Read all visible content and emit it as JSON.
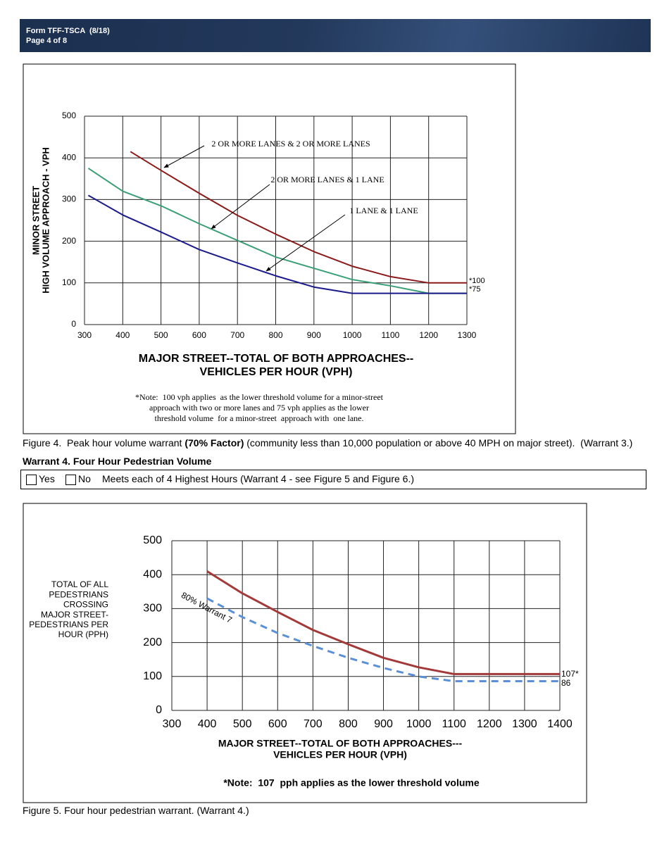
{
  "header": {
    "form": "Form TFF-TSCA  (8/18)",
    "page": "Page 4 of 8"
  },
  "figure4_caption": [
    "Figure 4.  Peak hour volume warrant ",
    "(70% Factor)",
    " (community less than 10,000 population or above 40 MPH on major street).  (Warrant 3.)"
  ],
  "warrant4": {
    "title": "Warrant 4. Four Hour Pedestrian Volume",
    "yes": "Yes",
    "no": "No",
    "text": "Meets each of 4 Highest Hours (Warrant 4 - see Figure 5 and Figure 6.)"
  },
  "figure5_caption": "Figure 5. Four hour pedestrian warrant. (Warrant 4.)",
  "chart_data": [
    {
      "type": "line",
      "xlabel": [
        "MAJOR STREET--TOTAL OF BOTH APPROACHES--",
        "VEHICLES PER HOUR (VPH)"
      ],
      "ylabel": [
        "MINOR STREET",
        "HIGH VOLUME APPROACH - VPH"
      ],
      "note": [
        "*Note:  100 vph applies  as the lower threshold volume for a minor-street",
        "approach with two or more lanes and 75 vph applies as the lower",
        "threshold volume  for a minor-street  approach with  one lane."
      ],
      "xlim": [
        300,
        1300
      ],
      "xticks": [
        300,
        400,
        500,
        600,
        700,
        800,
        900,
        1000,
        1100,
        1200,
        1300
      ],
      "ylim": [
        0,
        500
      ],
      "yticks": [
        0,
        100,
        200,
        300,
        400,
        500
      ],
      "grid": true,
      "series": [
        {
          "name": "2 OR MORE LANES & 2 OR MORE LANES",
          "color": "#8b1a1a",
          "x": [
            420,
            500,
            600,
            700,
            800,
            900,
            1000,
            1100,
            1200,
            1300
          ],
          "values": [
            415,
            370,
            315,
            262,
            217,
            175,
            140,
            115,
            100,
            100
          ]
        },
        {
          "name": "2 OR MORE LANES & 1 LANE",
          "color": "#3a9e76",
          "x": [
            310,
            400,
            500,
            600,
            700,
            800,
            900,
            1000,
            1100,
            1200,
            1300
          ],
          "values": [
            375,
            320,
            285,
            242,
            202,
            162,
            135,
            108,
            93,
            75,
            75
          ]
        },
        {
          "name": "1 LANE & 1 LANE",
          "color": "#1a1a8c",
          "x": [
            310,
            400,
            500,
            600,
            700,
            800,
            900,
            1000,
            1100,
            1200,
            1300
          ],
          "values": [
            310,
            263,
            222,
            180,
            148,
            117,
            90,
            75,
            75,
            75,
            75
          ]
        }
      ],
      "annotations": [
        "*100",
        "*75"
      ]
    },
    {
      "type": "line",
      "xlabel": [
        "MAJOR STREET--TOTAL OF BOTH APPROACHES---",
        "VEHICLES PER HOUR (VPH)"
      ],
      "ylabel": [
        "TOTAL OF ALL",
        "PEDESTRIANS",
        "CROSSING",
        "MAJOR STREET-",
        "PEDESTRIANS PER",
        "HOUR (PPH)"
      ],
      "note": [
        "*Note:  107  pph applies as the lower threshold volume"
      ],
      "xlim": [
        300,
        1400
      ],
      "xticks": [
        300,
        400,
        500,
        600,
        700,
        800,
        900,
        1000,
        1100,
        1200,
        1300,
        1400
      ],
      "ylim": [
        0,
        500
      ],
      "yticks": [
        0,
        100,
        200,
        300,
        400,
        500
      ],
      "grid": true,
      "series": [
        {
          "color": "#a33a3a",
          "x": [
            400,
            500,
            600,
            700,
            800,
            900,
            1000,
            1100,
            1400
          ],
          "values": [
            410,
            345,
            290,
            237,
            195,
            155,
            127,
            107,
            107
          ]
        },
        {
          "name": "80% Warrant 7",
          "color": "#5b8fd6",
          "dashed": true,
          "x": [
            400,
            500,
            600,
            700,
            800,
            900,
            1000,
            1100,
            1400
          ],
          "values": [
            330,
            275,
            228,
            190,
            155,
            125,
            100,
            86,
            86
          ]
        }
      ],
      "annotations": [
        "107*",
        "86"
      ]
    }
  ]
}
